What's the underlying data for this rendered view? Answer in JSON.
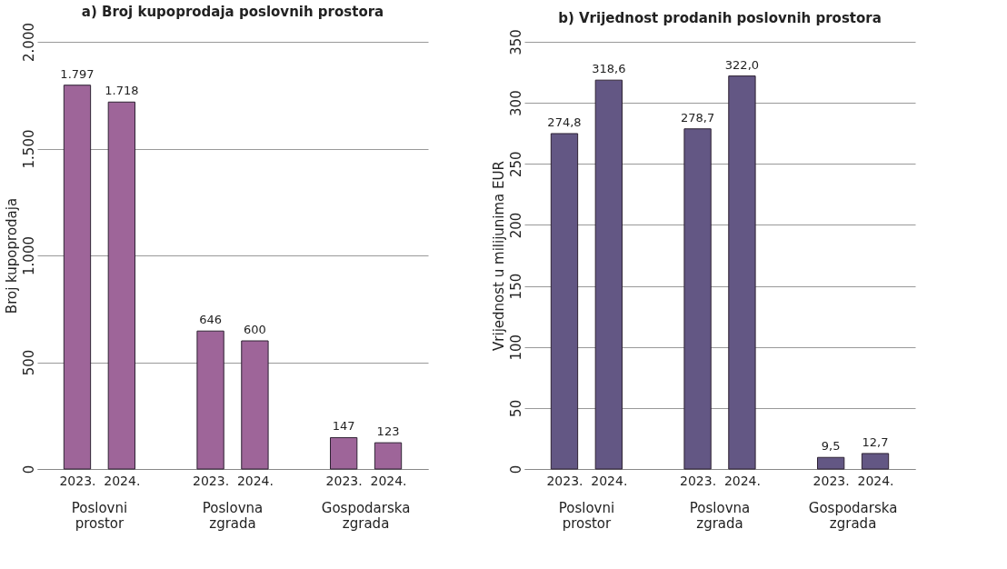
{
  "chart_data": [
    {
      "type": "bar",
      "title": "a) Broj kupoprodaja poslovnih prostora",
      "ylabel": "Broj kupoprodaja",
      "categories": [
        "2023.",
        "2024.",
        "2023.",
        "2024.",
        "2023.",
        "2024."
      ],
      "values": [
        1797,
        1718,
        646,
        600,
        147,
        123
      ],
      "value_labels": [
        "1.797",
        "1.718",
        "646",
        "600",
        "147",
        "123"
      ],
      "color": "#9e6599",
      "ylim": [
        0,
        2000
      ],
      "yticks": [
        0,
        500,
        {
          "value": 1000,
          "label": "1.000"
        },
        {
          "value": 1500,
          "label": "1.500"
        },
        {
          "value": 2000,
          "label": "2.000"
        }
      ],
      "grid": "y",
      "annotations": [
        "Poslovni prostor",
        "Poslovna zgrada",
        "Gospodarska zgrada"
      ]
    },
    {
      "type": "bar",
      "title": "b) Vrijednost prodanih poslovnih prostora",
      "ylabel": "Vrijednost u milijunima EUR",
      "categories": [
        "2023.",
        "2024.",
        "2023.",
        "2024.",
        "2023.",
        "2024."
      ],
      "values": [
        274.8,
        318.6,
        278.7,
        322.0,
        9.5,
        12.7
      ],
      "value_labels": [
        "274,8",
        "318,6",
        "278,7",
        "322,0",
        "9,5",
        "12,7"
      ],
      "color": "#635784",
      "ylim": [
        0,
        350
      ],
      "yticks": [
        0,
        50,
        100,
        150,
        200,
        250,
        300,
        350
      ],
      "grid": "y",
      "annotations": [
        "Poslovni prostor",
        "Poslovna zgrada",
        "Gospodarska zgrada"
      ]
    }
  ]
}
